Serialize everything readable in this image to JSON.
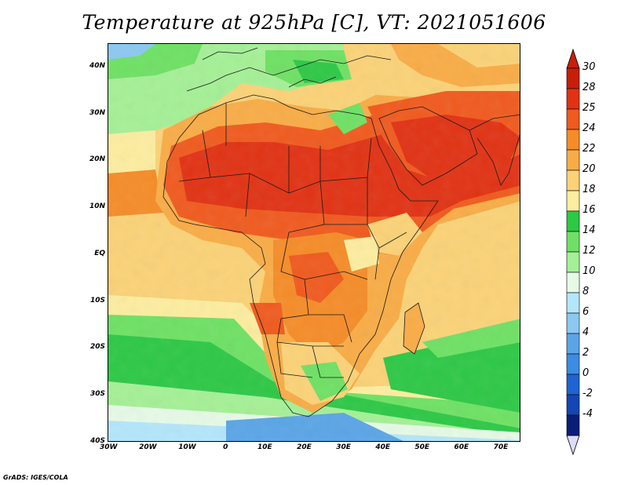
{
  "title": "Temperature at 925hPa [C], VT: 2021051606",
  "credit": "GrADS: IGES/COLA",
  "map": {
    "lon_range": [
      -30,
      75
    ],
    "lat_range": [
      -40,
      45
    ],
    "lon_ticks": [
      "30W",
      "20W",
      "10W",
      "0",
      "10E",
      "20E",
      "30E",
      "40E",
      "50E",
      "60E",
      "70E"
    ],
    "lat_ticks": [
      "40N",
      "30N",
      "20N",
      "10N",
      "EQ",
      "10S",
      "20S",
      "30S",
      "40S"
    ],
    "border_color": "#1a1a1a"
  },
  "colorbar": {
    "labels": [
      "30",
      "28",
      "25",
      "24",
      "22",
      "20",
      "18",
      "16",
      "14",
      "12",
      "10",
      "8",
      "6",
      "4",
      "2",
      "0",
      "-2",
      "-4"
    ],
    "colors": [
      "#c81e0a",
      "#e13214",
      "#f05a1e",
      "#f58c28",
      "#f9ac46",
      "#fbd277",
      "#fdeda0",
      "#2dc846",
      "#6ee164",
      "#a5f096",
      "#e6fae6",
      "#b4e6fa",
      "#8cc8f0",
      "#5aa5e6",
      "#3c8ce1",
      "#1e64d2",
      "#1446b4",
      "#0a1e78"
    ]
  },
  "chart_data": {
    "type": "heatmap",
    "title": "Temperature at 925hPa [C], VT: 2021051606",
    "x_ticks": [
      "30W",
      "20W",
      "10W",
      "0",
      "10E",
      "20E",
      "30E",
      "40E",
      "50E",
      "60E",
      "70E"
    ],
    "y_ticks": [
      "40N",
      "30N",
      "20N",
      "10N",
      "EQ",
      "10S",
      "20S",
      "30S",
      "40S"
    ],
    "xlim": [
      -30,
      75
    ],
    "ylim": [
      -40,
      45
    ],
    "colorbar_levels": [
      -4,
      -2,
      0,
      2,
      4,
      6,
      8,
      10,
      12,
      14,
      16,
      18,
      20,
      22,
      24,
      25,
      28,
      30
    ]
  }
}
